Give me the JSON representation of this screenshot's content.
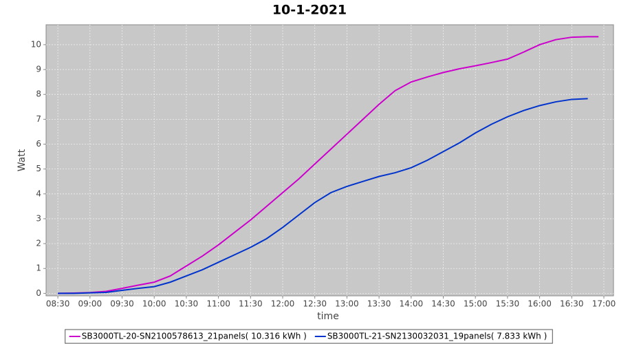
{
  "chart_data": {
    "type": "line",
    "title": "10-1-2021",
    "x_label": "time",
    "y_label": "Watt",
    "x": [
      "08:30",
      "08:45",
      "09:00",
      "09:15",
      "09:30",
      "09:45",
      "10:00",
      "10:15",
      "10:30",
      "10:45",
      "11:00",
      "11:15",
      "11:30",
      "11:45",
      "12:00",
      "12:15",
      "12:30",
      "12:45",
      "13:00",
      "13:15",
      "13:30",
      "13:45",
      "14:00",
      "14:15",
      "14:30",
      "14:45",
      "15:00",
      "15:15",
      "15:30",
      "15:45",
      "16:00",
      "16:15",
      "16:30",
      "16:45",
      "16:55"
    ],
    "series": [
      {
        "name": "SB3000TL-20-SN2100578613_21panels( 10.316 kWh )",
        "color": "#cc00cc",
        "values": [
          0,
          0.01,
          0.03,
          0.08,
          0.2,
          0.33,
          0.45,
          0.7,
          1.1,
          1.5,
          1.95,
          2.45,
          2.95,
          3.5,
          4.05,
          4.6,
          5.2,
          5.8,
          6.4,
          7.0,
          7.6,
          8.15,
          8.5,
          8.7,
          8.88,
          9.03,
          9.15,
          9.28,
          9.42,
          9.7,
          10.0,
          10.2,
          10.3,
          10.32,
          10.32
        ]
      },
      {
        "name": "SB3000TL-21-SN2130032031_19panels( 7.833 kWh )",
        "color": "#0033cc",
        "values": [
          0,
          0,
          0.02,
          0.04,
          0.12,
          0.2,
          0.27,
          0.45,
          0.7,
          0.95,
          1.25,
          1.55,
          1.85,
          2.2,
          2.65,
          3.15,
          3.65,
          4.05,
          4.3,
          4.5,
          4.7,
          4.85,
          5.05,
          5.35,
          5.7,
          6.05,
          6.45,
          6.8,
          7.1,
          7.35,
          7.55,
          7.7,
          7.8,
          7.83,
          null
        ]
      }
    ],
    "xlim": [
      "08:19",
      "17:09"
    ],
    "xticks": [
      "08:30",
      "09:00",
      "09:30",
      "10:00",
      "10:30",
      "11:00",
      "11:30",
      "12:00",
      "12:30",
      "13:00",
      "13:30",
      "14:00",
      "14:30",
      "15:00",
      "15:30",
      "16:00",
      "16:30",
      "17:00"
    ],
    "ylim": [
      -0.1,
      10.8
    ],
    "yticks": [
      0,
      1,
      2,
      3,
      4,
      5,
      6,
      7,
      8,
      9,
      10
    ],
    "grid": true
  }
}
